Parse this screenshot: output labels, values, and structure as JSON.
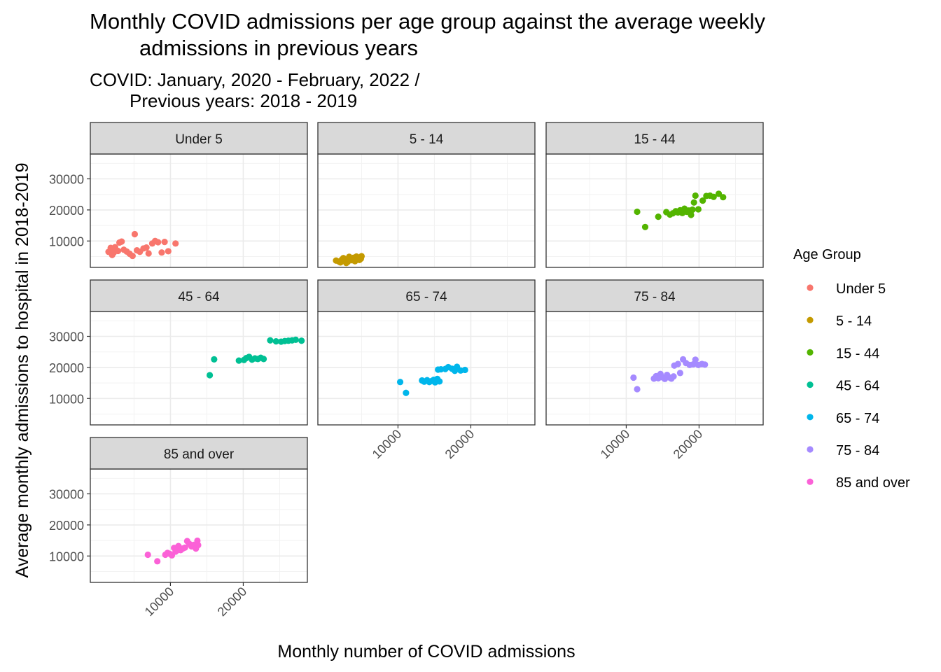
{
  "chart_data": {
    "type": "scatter",
    "title": "Monthly COVID admissions per age group against the average weekly",
    "title_line2": "admissions in previous years",
    "subtitle": "COVID: January, 2020 - February, 2022 /",
    "subtitle_line2": "Previous years: 2018 - 2019",
    "xlabel": "Monthly number of COVID admissions",
    "ylabel": "Average monthly admissions to hospital in 2018-2019",
    "xlim": [
      -1000,
      28800
    ],
    "ylim": [
      1500,
      38000
    ],
    "x_ticks": [
      10000,
      20000
    ],
    "x_tick_labels": [
      "10000",
      "20000"
    ],
    "y_ticks": [
      10000,
      20000,
      30000
    ],
    "y_tick_labels": [
      "10000",
      "20000",
      "30000"
    ],
    "grid": true,
    "facet_layout": {
      "rows": 3,
      "cols": 3
    },
    "legend": {
      "title": "Age Group",
      "position": "right"
    },
    "series": [
      {
        "name": "Under 5",
        "color": "#F8766D",
        "points": [
          [
            1500,
            6500
          ],
          [
            1800,
            7800
          ],
          [
            2000,
            5500
          ],
          [
            2200,
            6200
          ],
          [
            2400,
            8000
          ],
          [
            2600,
            7000
          ],
          [
            2800,
            6800
          ],
          [
            3000,
            9500
          ],
          [
            3300,
            9800
          ],
          [
            3600,
            7200
          ],
          [
            4000,
            6600
          ],
          [
            4400,
            5900
          ],
          [
            4800,
            5200
          ],
          [
            5100,
            12200
          ],
          [
            5400,
            7000
          ],
          [
            5800,
            6500
          ],
          [
            6300,
            7600
          ],
          [
            6700,
            7900
          ],
          [
            7000,
            6000
          ],
          [
            7500,
            9200
          ],
          [
            7900,
            10000
          ],
          [
            8300,
            9600
          ],
          [
            8800,
            6300
          ],
          [
            9200,
            9700
          ],
          [
            9700,
            6700
          ],
          [
            10700,
            9200
          ]
        ]
      },
      {
        "name": "5 - 14",
        "color": "#C49A00",
        "points": [
          [
            1500,
            3700
          ],
          [
            1900,
            3400
          ],
          [
            2100,
            3100
          ],
          [
            2300,
            4000
          ],
          [
            2500,
            4500
          ],
          [
            2700,
            3600
          ],
          [
            2900,
            2900
          ],
          [
            3100,
            3300
          ],
          [
            3300,
            4900
          ],
          [
            3500,
            4200
          ],
          [
            3700,
            3800
          ],
          [
            3900,
            4600
          ],
          [
            4100,
            3500
          ],
          [
            4300,
            5000
          ],
          [
            4500,
            4100
          ],
          [
            4700,
            3900
          ],
          [
            4900,
            4300
          ],
          [
            5000,
            5100
          ]
        ]
      },
      {
        "name": "15 - 44",
        "color": "#53B400",
        "points": [
          [
            11500,
            19400
          ],
          [
            12600,
            14500
          ],
          [
            14400,
            17800
          ],
          [
            15500,
            19300
          ],
          [
            16000,
            18500
          ],
          [
            16400,
            18900
          ],
          [
            16800,
            19600
          ],
          [
            17100,
            19200
          ],
          [
            17400,
            19900
          ],
          [
            17700,
            19000
          ],
          [
            18000,
            20400
          ],
          [
            18300,
            19400
          ],
          [
            18600,
            19800
          ],
          [
            18900,
            18400
          ],
          [
            19100,
            20100
          ],
          [
            19300,
            22400
          ],
          [
            19500,
            24600
          ],
          [
            19900,
            20200
          ],
          [
            20500,
            23000
          ],
          [
            21000,
            24500
          ],
          [
            21500,
            24600
          ],
          [
            22000,
            24200
          ],
          [
            22700,
            25200
          ],
          [
            23300,
            24100
          ]
        ]
      },
      {
        "name": "45 - 64",
        "color": "#00C094",
        "points": [
          [
            15400,
            17500
          ],
          [
            16000,
            22600
          ],
          [
            19400,
            22200
          ],
          [
            20100,
            22400
          ],
          [
            20400,
            23000
          ],
          [
            20800,
            23400
          ],
          [
            21200,
            22500
          ],
          [
            21600,
            22900
          ],
          [
            22000,
            22700
          ],
          [
            22400,
            23100
          ],
          [
            22800,
            22700
          ],
          [
            23700,
            28700
          ],
          [
            24500,
            28400
          ],
          [
            25200,
            28300
          ],
          [
            25700,
            28500
          ],
          [
            26200,
            28600
          ],
          [
            26700,
            28700
          ],
          [
            27200,
            28900
          ],
          [
            28000,
            28600
          ]
        ]
      },
      {
        "name": "65 - 74",
        "color": "#00B6EB",
        "points": [
          [
            10300,
            15300
          ],
          [
            11100,
            11800
          ],
          [
            13300,
            15800
          ],
          [
            13600,
            15400
          ],
          [
            14000,
            15900
          ],
          [
            14300,
            15300
          ],
          [
            14600,
            15600
          ],
          [
            14900,
            16000
          ],
          [
            15100,
            15200
          ],
          [
            15400,
            16300
          ],
          [
            15700,
            15500
          ],
          [
            15500,
            19300
          ],
          [
            15900,
            19400
          ],
          [
            16500,
            19500
          ],
          [
            16900,
            20100
          ],
          [
            17400,
            19600
          ],
          [
            17800,
            18900
          ],
          [
            18100,
            20200
          ],
          [
            18600,
            19000
          ],
          [
            19200,
            19200
          ]
        ]
      },
      {
        "name": "75 - 84",
        "color": "#A58AFF",
        "points": [
          [
            11000,
            16700
          ],
          [
            11500,
            13000
          ],
          [
            13800,
            16400
          ],
          [
            14100,
            17200
          ],
          [
            14400,
            16500
          ],
          [
            14700,
            17900
          ],
          [
            15000,
            16800
          ],
          [
            15300,
            16300
          ],
          [
            15600,
            17600
          ],
          [
            15900,
            16800
          ],
          [
            16200,
            16400
          ],
          [
            16500,
            17100
          ],
          [
            16600,
            20600
          ],
          [
            17100,
            21100
          ],
          [
            17400,
            18200
          ],
          [
            17800,
            22600
          ],
          [
            18200,
            21400
          ],
          [
            18700,
            20800
          ],
          [
            19200,
            21000
          ],
          [
            19500,
            22500
          ],
          [
            19900,
            20800
          ],
          [
            20400,
            21100
          ],
          [
            20800,
            20900
          ]
        ]
      },
      {
        "name": "85 and over",
        "color": "#FB61D7",
        "points": [
          [
            6900,
            10400
          ],
          [
            8200,
            8300
          ],
          [
            9300,
            10400
          ],
          [
            9600,
            11000
          ],
          [
            9900,
            10700
          ],
          [
            10200,
            10200
          ],
          [
            10500,
            12600
          ],
          [
            10700,
            11400
          ],
          [
            10900,
            11800
          ],
          [
            11100,
            13200
          ],
          [
            11400,
            11900
          ],
          [
            11700,
            12400
          ],
          [
            12000,
            12700
          ],
          [
            12300,
            14800
          ],
          [
            12600,
            13900
          ],
          [
            12900,
            13100
          ],
          [
            13200,
            13600
          ],
          [
            13500,
            12400
          ],
          [
            13700,
            14900
          ],
          [
            13800,
            13500
          ]
        ]
      }
    ]
  }
}
